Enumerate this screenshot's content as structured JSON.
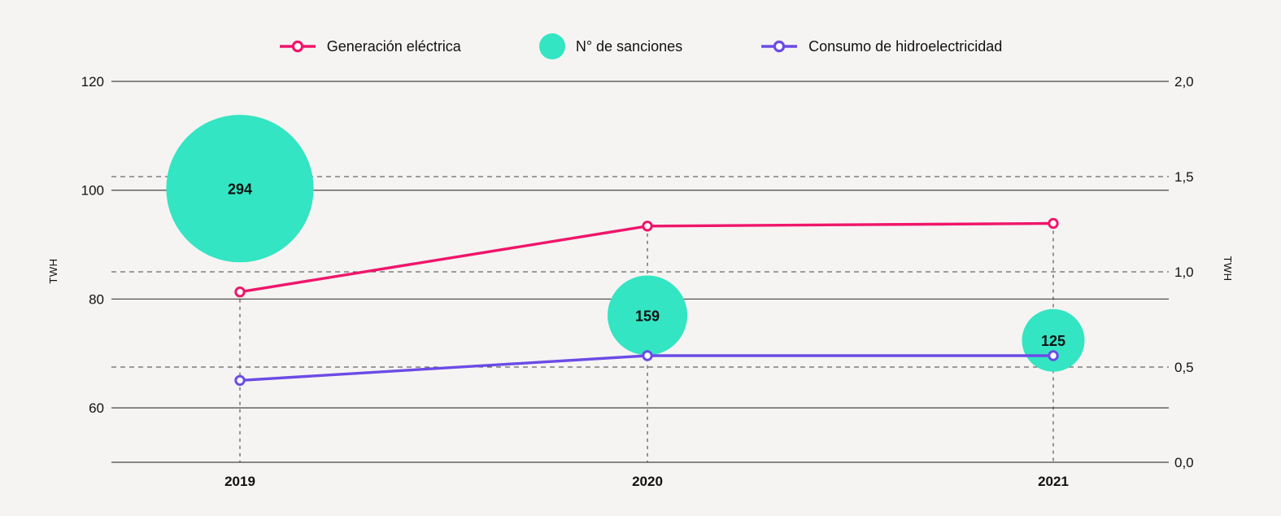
{
  "page": {
    "background": "#f5f4f2",
    "text_color": "#111111",
    "grid_color": "#444444"
  },
  "legend": {
    "position": "top-center",
    "items": [
      {
        "label": "Generación eléctrica",
        "marker": "line-with-open-circle",
        "color": "#f0156b"
      },
      {
        "label": "N° de sanciones",
        "marker": "filled-circle",
        "color": "#33e5c2"
      },
      {
        "label": "Consumo de hidroelectricidad",
        "marker": "line-with-open-circle",
        "color": "#6b4be6"
      }
    ]
  },
  "chart_data": {
    "type": "combo-line-bubble",
    "title": "",
    "categories": [
      "2019",
      "2020",
      "2021"
    ],
    "series": [
      {
        "name": "Generación eléctrica",
        "type": "line",
        "axis": "left",
        "color": "#f0156b",
        "marker": "open-circle",
        "values": [
          81.3,
          93.4,
          93.9
        ]
      },
      {
        "name": "N° de sanciones",
        "type": "bubble",
        "color": "#33e5c2",
        "values": [
          294,
          159,
          125
        ],
        "labels": [
          "294",
          "159",
          "125"
        ],
        "label_color": "#111111",
        "bubble_center_y_left_axis": [
          100.3,
          77.0,
          72.4
        ],
        "bubble_radius_px_per_unit": 0.308
      },
      {
        "name": "Consumo de hidroelectricidad",
        "type": "line",
        "axis": "right",
        "color": "#6b4be6",
        "marker": "open-circle",
        "values": [
          0.43,
          0.56,
          0.56
        ]
      }
    ],
    "left_axis": {
      "title": "TWH",
      "tick_labels": [
        "120",
        "100",
        "80",
        "60"
      ],
      "tick_values": [
        120,
        100,
        80,
        60
      ],
      "range": [
        50,
        120
      ],
      "gridline_style": "solid"
    },
    "right_axis": {
      "title": "TWH",
      "tick_labels": [
        "2,0",
        "1,5",
        "1,0",
        "0,5",
        "0,0"
      ],
      "tick_values": [
        2.0,
        1.5,
        1.0,
        0.5,
        0.0
      ],
      "range": [
        0.0,
        2.0
      ],
      "gridline_style": "dashed-inner-ticks"
    },
    "x_axis": {
      "labels": [
        "2019",
        "2020",
        "2021"
      ],
      "guides": "dashed-vertical-from-point-to-baseline"
    },
    "grid": true,
    "legend_position": "top-center"
  }
}
